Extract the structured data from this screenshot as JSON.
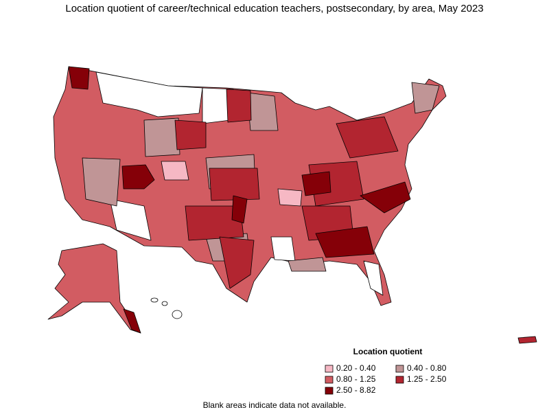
{
  "title": "Location quotient of career/technical education teachers, postsecondary, by area, May 2023",
  "legend": {
    "title": "Location quotient",
    "items": [
      {
        "label": "0.20 - 0.40",
        "color": "#f6b8c4"
      },
      {
        "label": "0.40 - 0.80",
        "color": "#c09596"
      },
      {
        "label": "0.80 - 1.25",
        "color": "#d25c62"
      },
      {
        "label": "1.25 - 2.50",
        "color": "#b22530"
      },
      {
        "label": "2.50 - 8.82",
        "color": "#850008"
      }
    ]
  },
  "footnote": "Blank areas indicate data not available."
}
